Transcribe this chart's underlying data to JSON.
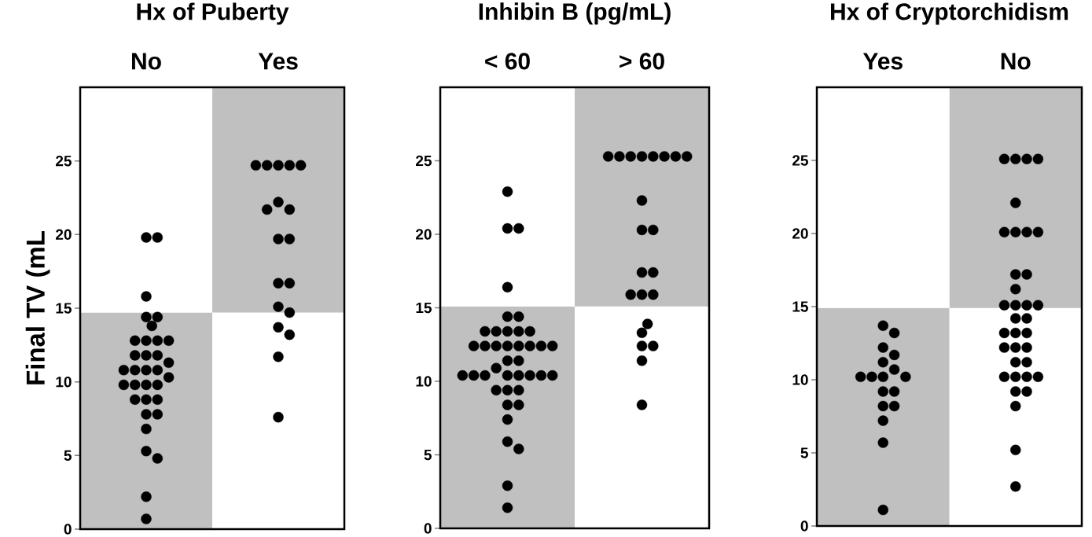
{
  "chart_data": [
    {
      "type": "scatter",
      "title": "Hx of Puberty",
      "ylabel": "Final TV (mL",
      "marker": "circle",
      "categories": [
        "No",
        "Yes"
      ],
      "ylim": [
        0,
        30
      ],
      "yticks": [
        0,
        5,
        10,
        15,
        20,
        25
      ],
      "series": [
        {
          "type": "bar",
          "color": "#c0c0c0",
          "values": [
            14.7,
            15.3
          ],
          "base": [
            0,
            14.7
          ]
        },
        {
          "color": "#000000",
          "x": [
            "No",
            "No",
            "No",
            "No",
            "No",
            "No",
            "No",
            "No",
            "No",
            "No",
            "No",
            "No",
            "No",
            "No",
            "No",
            "No",
            "No",
            "No",
            "No",
            "No",
            "No",
            "No",
            "No",
            "No",
            "No",
            "No",
            "No",
            "No",
            "No",
            "No",
            "No",
            "No",
            "No",
            "Yes",
            "Yes",
            "Yes",
            "Yes",
            "Yes",
            "Yes",
            "Yes",
            "Yes",
            "Yes",
            "Yes",
            "Yes",
            "Yes",
            "Yes",
            "Yes",
            "Yes",
            "Yes",
            "Yes",
            "Yes"
          ],
          "values": [
            19.8,
            19.8,
            15.8,
            10.8,
            12.8,
            9.8,
            8.8,
            7.8,
            6.8,
            5.3,
            4.8,
            14.4,
            12.8,
            11.8,
            10.8,
            9.8,
            8.8,
            7.8,
            2.2,
            12.8,
            11.8,
            10.8,
            9.8,
            14.4,
            13.8,
            12.8,
            11.8,
            11.3,
            10.8,
            10.3,
            9.8,
            8.8,
            0.7,
            24.7,
            24.7,
            24.7,
            24.7,
            24.7,
            22.2,
            21.7,
            21.7,
            19.7,
            19.7,
            16.7,
            16.7,
            15.1,
            14.7,
            13.7,
            13.2,
            11.7,
            7.6
          ]
        }
      ]
    },
    {
      "type": "scatter",
      "title": "Inhibin B (pg/mL)",
      "marker": "circle",
      "categories": [
        "< 60",
        "> 60"
      ],
      "ylim": [
        0,
        30
      ],
      "yticks": [
        0,
        5,
        10,
        15,
        20,
        25
      ],
      "series": [
        {
          "type": "bar",
          "color": "#c0c0c0",
          "values": [
            15.1,
            14.9
          ],
          "base": [
            0,
            15.1
          ]
        },
        {
          "color": "#000000",
          "x": [
            "< 60",
            "< 60",
            "< 60",
            "< 60",
            "< 60",
            "< 60",
            "< 60",
            "< 60",
            "< 60",
            "< 60",
            "< 60",
            "< 60",
            "< 60",
            "< 60",
            "< 60",
            "< 60",
            "< 60",
            "< 60",
            "< 60",
            "< 60",
            "< 60",
            "< 60",
            "< 60",
            "< 60",
            "< 60",
            "< 60",
            "< 60",
            "< 60",
            "< 60",
            "< 60",
            "< 60",
            "< 60",
            "< 60",
            "< 60",
            "< 60",
            "< 60",
            "< 60",
            "< 60",
            "< 60",
            "< 60",
            "> 60",
            "> 60",
            "> 60",
            "> 60",
            "> 60",
            "> 60",
            "> 60",
            "> 60",
            "> 60",
            "> 60",
            "> 60",
            "> 60",
            "> 60",
            "> 60",
            "> 60",
            "> 60",
            "> 60",
            "> 60",
            "> 60",
            "> 60",
            "> 60",
            "> 60"
          ],
          "values": [
            22.9,
            20.4,
            20.4,
            16.4,
            14.4,
            14.4,
            13.4,
            13.4,
            13.4,
            13.4,
            13.4,
            12.4,
            12.4,
            12.4,
            12.4,
            12.4,
            12.4,
            12.4,
            12.4,
            11.4,
            11.4,
            10.9,
            10.4,
            10.4,
            10.4,
            10.4,
            10.4,
            10.4,
            10.4,
            10.4,
            9.4,
            9.4,
            9.4,
            8.4,
            8.4,
            7.4,
            5.9,
            5.4,
            2.9,
            1.4,
            25.3,
            25.3,
            25.3,
            25.3,
            25.3,
            25.3,
            25.3,
            25.3,
            22.3,
            20.3,
            20.3,
            17.4,
            17.4,
            15.9,
            15.9,
            15.9,
            11.4,
            13.3,
            12.4,
            12.4,
            13.9,
            8.4
          ]
        }
      ]
    },
    {
      "type": "scatter",
      "title": "Hx of Cryptorchidism",
      "marker": "circle",
      "categories": [
        "Yes",
        "No"
      ],
      "ylim": [
        0,
        30
      ],
      "yticks": [
        0,
        5,
        10,
        15,
        20,
        25
      ],
      "series": [
        {
          "type": "bar",
          "color": "#c0c0c0",
          "values": [
            14.9,
            15.1
          ],
          "base": [
            0,
            14.9
          ]
        },
        {
          "color": "#000000",
          "x": [
            "Yes",
            "Yes",
            "Yes",
            "Yes",
            "Yes",
            "Yes",
            "Yes",
            "Yes",
            "Yes",
            "Yes",
            "Yes",
            "Yes",
            "Yes",
            "Yes",
            "Yes",
            "Yes",
            "Yes",
            "No",
            "No",
            "No",
            "No",
            "No",
            "No",
            "No",
            "No",
            "No",
            "No",
            "No",
            "No",
            "No",
            "No",
            "No",
            "No",
            "No",
            "No",
            "No",
            "No",
            "No",
            "No",
            "No",
            "No",
            "No",
            "No",
            "No",
            "No",
            "No",
            "No",
            "No",
            "No",
            "No",
            "No",
            "No"
          ],
          "values": [
            13.7,
            13.2,
            12.2,
            11.7,
            11.2,
            10.7,
            10.2,
            10.2,
            10.2,
            10.2,
            9.2,
            9.2,
            8.2,
            8.2,
            7.2,
            5.7,
            1.1,
            25.1,
            25.1,
            25.1,
            25.1,
            22.1,
            20.1,
            20.1,
            20.1,
            20.1,
            17.2,
            17.2,
            16.2,
            15.1,
            15.1,
            15.1,
            15.1,
            14.2,
            14.2,
            13.2,
            13.2,
            13.2,
            12.2,
            12.2,
            12.2,
            11.2,
            11.2,
            10.2,
            10.2,
            10.2,
            10.2,
            9.2,
            9.2,
            8.2,
            5.2,
            2.7
          ]
        }
      ]
    }
  ]
}
